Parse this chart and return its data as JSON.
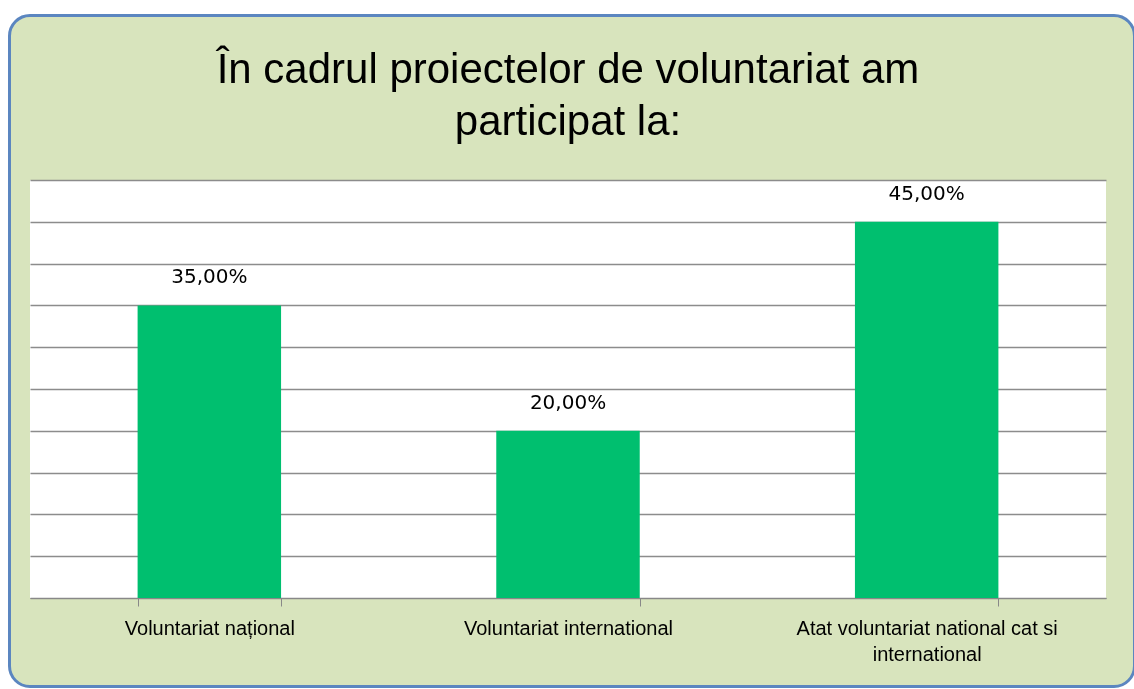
{
  "chart_data": {
    "type": "bar",
    "title": "În cadrul proiectelor de voluntariat am participat la:",
    "categories": [
      "Voluntariat național",
      "Voluntariat international",
      "Atat voluntariat national cat si international"
    ],
    "values": [
      35,
      20,
      45
    ],
    "color": "#00bf6f",
    "value_labels": [
      "35,00%",
      "20,00%",
      "45,00%"
    ],
    "ylim": [
      0,
      50
    ],
    "yticks": [
      {
        "value": 0,
        "label": null
      },
      {
        "value": 5,
        "label": null
      },
      {
        "value": 10,
        "label": null
      },
      {
        "value": 15,
        "label": null
      },
      {
        "value": 20,
        "label": null
      },
      {
        "value": 25,
        "label": null
      },
      {
        "value": 30,
        "label": null
      },
      {
        "value": 35,
        "label": null
      },
      {
        "value": 40,
        "label": null
      },
      {
        "value": 45,
        "label": null
      },
      {
        "value": 50,
        "label": null
      }
    ],
    "grid": "y",
    "tick_labels": "x"
  }
}
